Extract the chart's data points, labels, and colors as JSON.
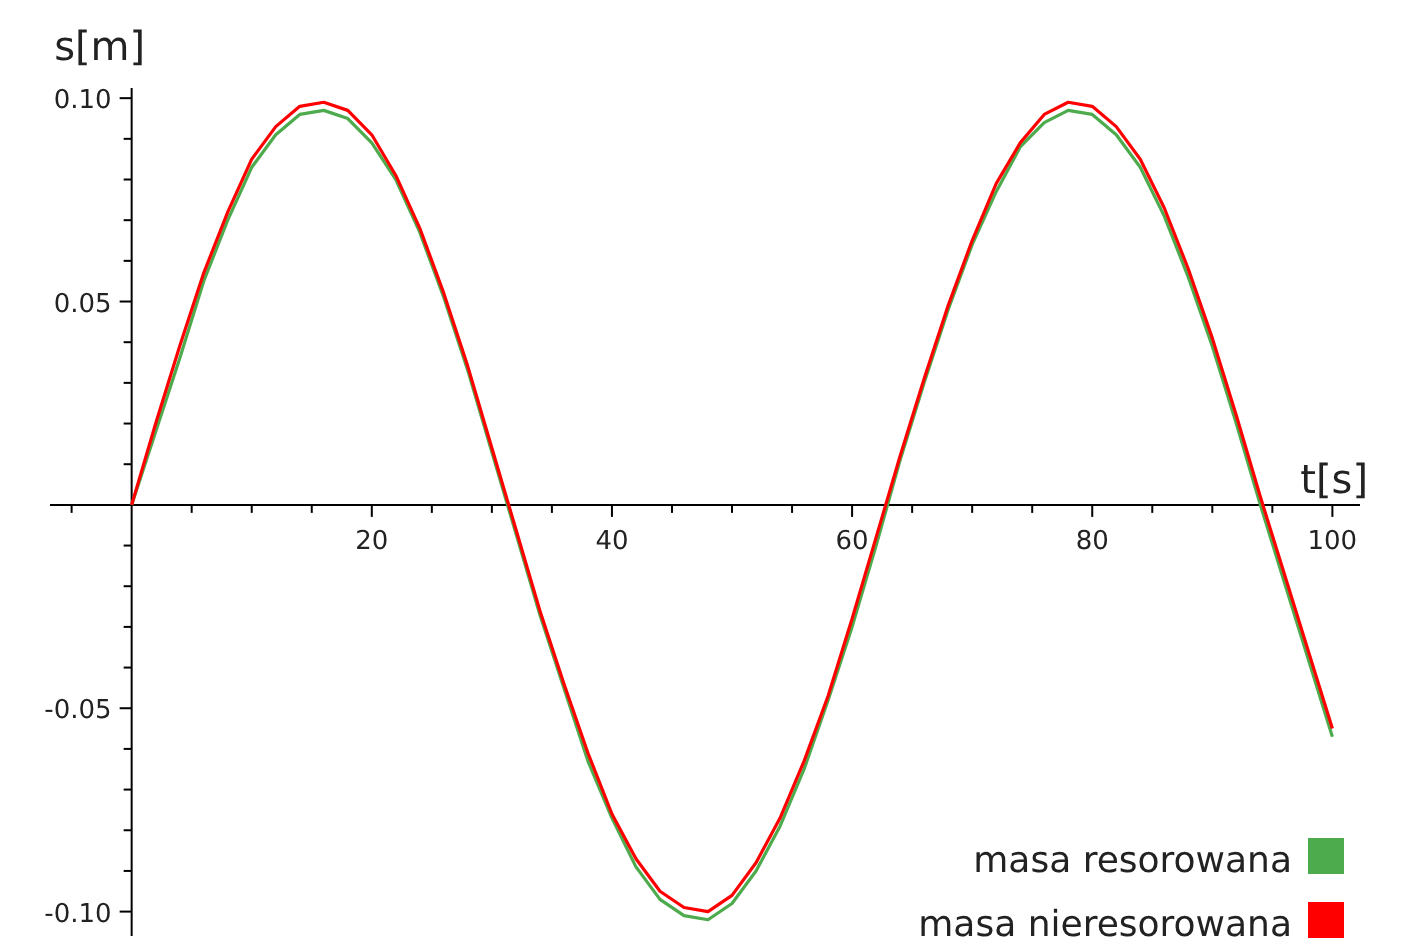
{
  "chart_data": {
    "type": "line",
    "xlabel": "t[s]",
    "ylabel": "s[m]",
    "x": [
      0,
      2,
      4,
      6,
      8,
      10,
      12,
      14,
      16,
      18,
      20,
      22,
      24,
      26,
      28,
      30,
      32,
      34,
      36,
      38,
      40,
      42,
      44,
      46,
      48,
      50,
      52,
      54,
      56,
      58,
      60,
      62,
      64,
      66,
      68,
      70,
      72,
      74,
      76,
      78,
      80,
      82,
      84,
      86,
      88,
      90,
      92,
      94,
      96,
      98,
      100
    ],
    "series": [
      {
        "name": "masa resorowana",
        "color": "#4daa4d",
        "values": [
          0,
          0.018,
          0.036,
          0.055,
          0.07,
          0.083,
          0.091,
          0.096,
          0.097,
          0.095,
          0.089,
          0.08,
          0.067,
          0.051,
          0.033,
          0.013,
          -0.007,
          -0.027,
          -0.045,
          -0.063,
          -0.077,
          -0.089,
          -0.097,
          -0.101,
          -0.102,
          -0.098,
          -0.09,
          -0.079,
          -0.065,
          -0.048,
          -0.03,
          -0.01,
          0.011,
          0.03,
          0.048,
          0.064,
          0.077,
          0.088,
          0.094,
          0.097,
          0.096,
          0.091,
          0.083,
          0.071,
          0.056,
          0.039,
          0.02,
          0.0,
          -0.019,
          -0.038,
          -0.057
        ]
      },
      {
        "name": "masa nieresorowana",
        "color": "#ff0000",
        "values": [
          0,
          0.02,
          0.039,
          0.057,
          0.072,
          0.085,
          0.093,
          0.098,
          0.099,
          0.097,
          0.091,
          0.081,
          0.068,
          0.052,
          0.034,
          0.014,
          -0.006,
          -0.026,
          -0.044,
          -0.061,
          -0.076,
          -0.087,
          -0.095,
          -0.099,
          -0.1,
          -0.096,
          -0.088,
          -0.077,
          -0.063,
          -0.047,
          -0.028,
          -0.008,
          0.012,
          0.031,
          0.049,
          0.065,
          0.079,
          0.089,
          0.096,
          0.099,
          0.098,
          0.093,
          0.085,
          0.073,
          0.058,
          0.041,
          0.022,
          0.002,
          -0.017,
          -0.036,
          -0.055
        ]
      }
    ],
    "xlim": [
      -6.8,
      102.3
    ],
    "ylim": [
      -0.106,
      0.1025
    ],
    "xticks": [
      {
        "value": -5,
        "label": null
      },
      {
        "value": 5,
        "label": null
      },
      {
        "value": 10,
        "label": null
      },
      {
        "value": 15,
        "label": null
      },
      20,
      {
        "value": 25,
        "label": null
      },
      {
        "value": 30,
        "label": null
      },
      {
        "value": 35,
        "label": null
      },
      40,
      {
        "value": 45,
        "label": null
      },
      {
        "value": 50,
        "label": null
      },
      {
        "value": 55,
        "label": null
      },
      60,
      {
        "value": 65,
        "label": null
      },
      {
        "value": 70,
        "label": null
      },
      {
        "value": 75,
        "label": null
      },
      80,
      {
        "value": 85,
        "label": null
      },
      {
        "value": 90,
        "label": null
      },
      {
        "value": 95,
        "label": null
      },
      100
    ],
    "yticks": [
      {
        "value": -0.1,
        "label": "-0.10"
      },
      {
        "value": -0.09,
        "label": null
      },
      {
        "value": -0.08,
        "label": null
      },
      {
        "value": -0.07,
        "label": null
      },
      {
        "value": -0.06,
        "label": null
      },
      -0.05,
      {
        "value": -0.04,
        "label": null
      },
      {
        "value": -0.03,
        "label": null
      },
      {
        "value": -0.02,
        "label": null
      },
      {
        "value": -0.01,
        "label": null
      },
      {
        "value": 0.01,
        "label": null
      },
      {
        "value": 0.02,
        "label": null
      },
      {
        "value": 0.03,
        "label": null
      },
      {
        "value": 0.04,
        "label": null
      },
      0.05,
      {
        "value": 0.06,
        "label": null
      },
      {
        "value": 0.07,
        "label": null
      },
      {
        "value": 0.08,
        "label": null
      },
      {
        "value": 0.09,
        "label": null
      },
      {
        "value": 0.1,
        "label": "0.10"
      }
    ],
    "grid": false,
    "legend": "bottom right",
    "marker": "none",
    "line_style": "solid"
  }
}
